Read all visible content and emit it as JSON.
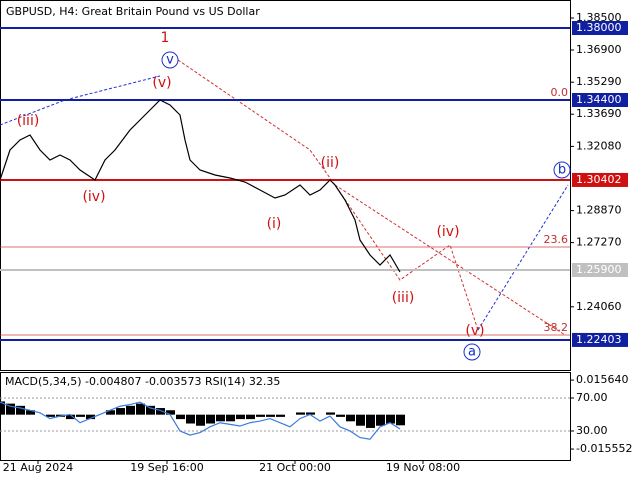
{
  "chart_data": [
    {
      "type": "line",
      "title": "GBPUSD, H4:  Great Britain Pound vs US Dollar",
      "color": "#000000",
      "series": [
        {
          "name": "GBPUSD",
          "color": "#000000",
          "x": [
            0,
            10,
            20,
            30,
            40,
            50,
            60,
            70,
            80,
            95,
            105,
            115,
            130,
            140,
            150,
            160,
            170,
            180,
            185,
            190,
            200,
            215,
            230,
            245,
            260,
            275,
            285,
            300,
            310,
            320,
            330,
            335,
            345,
            355,
            360,
            370,
            380,
            390,
            400
          ],
          "values": [
            1.304,
            1.319,
            1.324,
            1.3265,
            1.319,
            1.314,
            1.3165,
            1.314,
            1.309,
            1.304,
            1.314,
            1.319,
            1.329,
            1.334,
            1.339,
            1.344,
            1.3415,
            1.3365,
            1.324,
            1.314,
            1.309,
            1.3065,
            1.305,
            1.303,
            1.299,
            1.295,
            1.2965,
            1.3015,
            1.2965,
            1.299,
            1.304,
            1.3015,
            1.294,
            1.284,
            1.274,
            1.2665,
            1.2615,
            1.2665,
            1.258
          ]
        }
      ],
      "xlim": [
        0,
        570
      ],
      "ylim": [
        1.209,
        1.394
      ],
      "xticks": [
        {
          "value": 38,
          "label": "21 Aug 2024"
        },
        {
          "value": 167,
          "label": "19 Sep 16:00"
        },
        {
          "value": 295,
          "label": "21 Oct 00:00"
        },
        {
          "value": 423,
          "label": "19 Nov 08:00"
        }
      ],
      "yticks": [
        {
          "value": 1.385,
          "label": "1.38500"
        },
        {
          "value": 1.369,
          "label": "1.36900"
        },
        {
          "value": 1.3529,
          "label": "1.35290"
        },
        {
          "value": 1.3369,
          "label": "1.33690"
        },
        {
          "value": 1.3208,
          "label": "1.32080"
        },
        {
          "value": 1.2887,
          "label": "1.28870"
        },
        {
          "value": 1.2727,
          "label": "1.27270"
        },
        {
          "value": 1.2406,
          "label": "1.24060"
        }
      ],
      "levels": [
        {
          "value": 1.38,
          "label": "1.38000",
          "color": "#1020a0"
        },
        {
          "value": 1.344,
          "label": "1.34400",
          "color": "#1020a0"
        },
        {
          "value": 1.30402,
          "label": "1.30402",
          "color": "#d01010"
        },
        {
          "value": 1.259,
          "label": "1.25900",
          "color": "#c0c0c0"
        },
        {
          "value": 1.22403,
          "label": "1.22403",
          "color": "#1020a0"
        }
      ],
      "fib_levels": [
        {
          "value": 1.344,
          "label": "0.0"
        },
        {
          "value": 1.2705,
          "label": "23.6"
        },
        {
          "value": 1.2265,
          "label": "38.2"
        }
      ],
      "annotations": [
        "1",
        "v",
        "(v)",
        "(iii)",
        "(iv)",
        "(ii)",
        "(i)",
        "(iv)",
        "(iii)",
        "(v)",
        "a",
        "b"
      ]
    },
    {
      "type": "bar",
      "title": "MACD(5,34,5) -0.004807 -0.003573 RSI(14) 32.35",
      "color": "#000000",
      "x": [
        0,
        10,
        20,
        30,
        40,
        50,
        60,
        70,
        80,
        90,
        100,
        110,
        120,
        130,
        140,
        150,
        160,
        170,
        180,
        190,
        200,
        210,
        220,
        230,
        240,
        250,
        260,
        270,
        280,
        290,
        300,
        310,
        320,
        330,
        340,
        350,
        360,
        370,
        380,
        390,
        400
      ],
      "series": [
        {
          "name": "MACD",
          "color": "#000000",
          "values": [
            0.006,
            0.005,
            0.004,
            0.002,
            0.0,
            -0.001,
            -0.001,
            -0.002,
            -0.001,
            -0.002,
            0.0,
            0.002,
            0.003,
            0.004,
            0.005,
            0.004,
            0.003,
            0.002,
            -0.002,
            -0.004,
            -0.005,
            -0.004,
            -0.003,
            -0.003,
            -0.002,
            -0.002,
            -0.001,
            -0.001,
            -0.001,
            0.0,
            0.001,
            0.001,
            0.0,
            0.001,
            -0.001,
            -0.003,
            -0.005,
            -0.006,
            -0.005,
            -0.004,
            -0.0048
          ]
        },
        {
          "name": "RSI",
          "color": "#3a7be0",
          "axis": "y2",
          "values": [
            65,
            60,
            58,
            55,
            52,
            45,
            48,
            50,
            40,
            45,
            50,
            55,
            60,
            62,
            65,
            58,
            55,
            50,
            30,
            25,
            28,
            35,
            40,
            38,
            36,
            40,
            42,
            45,
            40,
            35,
            45,
            50,
            42,
            48,
            35,
            30,
            22,
            20,
            35,
            40,
            32.35
          ]
        }
      ],
      "xlim": [
        0,
        570
      ],
      "ylim": [
        -0.0205,
        0.0193
      ],
      "y2lim": [
        -5.2,
        101.5
      ],
      "yticks": [
        {
          "value": 0.01564,
          "label": "0.015640"
        },
        {
          "value": -0.015552,
          "label": "-0.015552"
        }
      ],
      "y2ticks": [
        {
          "value": 70,
          "label": "70.00"
        },
        {
          "value": 30,
          "label": "30.00"
        }
      ]
    }
  ]
}
